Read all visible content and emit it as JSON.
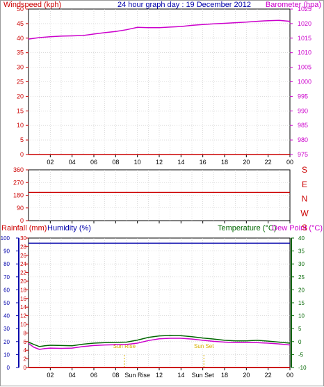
{
  "title": "24 hour graph day : 19 December 2012",
  "colors": {
    "frame": "#000000",
    "grid": "#c8c8c8",
    "red": "#cc0000",
    "magenta": "#cc00cc",
    "navy": "#0000aa",
    "green": "#006600",
    "gold": "#d8b000"
  },
  "chart_data": [
    {
      "type": "line",
      "panel": "wind-baro",
      "title": "24 hour graph day : 19 December 2012",
      "left_axis": {
        "label": "Windspeed (kph)",
        "ylim": [
          0,
          50
        ],
        "ticks": [
          "0",
          "5",
          "10",
          "15",
          "20",
          "25",
          "30",
          "35",
          "40",
          "45",
          "50"
        ]
      },
      "right_axis": {
        "label": "Barometer (hpa)",
        "ylim": [
          975,
          1025
        ],
        "ticks": [
          "975",
          "980",
          "985",
          "990",
          "995",
          "1000",
          "1005",
          "1010",
          "1015",
          "1020",
          "1025"
        ]
      },
      "x_tick_labels": [
        "02",
        "04",
        "06",
        "08",
        "10",
        "12",
        "14",
        "16",
        "18",
        "20",
        "22",
        "00"
      ],
      "series": [
        {
          "name": "Windspeed (kph)",
          "axis": "left",
          "x": [
            0,
            24
          ],
          "values": [
            0,
            0
          ]
        },
        {
          "name": "Barometer (hpa)",
          "axis": "right",
          "x": [
            0,
            1,
            2,
            3,
            4,
            5,
            6,
            7,
            8,
            9,
            10,
            11,
            12,
            13,
            14,
            15,
            16,
            17,
            18,
            19,
            20,
            21,
            22,
            23,
            24
          ],
          "values": [
            1014.7,
            1015.2,
            1015.5,
            1015.7,
            1015.8,
            1015.9,
            1016.4,
            1016.9,
            1017.3,
            1017.9,
            1018.7,
            1018.6,
            1018.6,
            1018.8,
            1019.0,
            1019.4,
            1019.7,
            1019.9,
            1020.1,
            1020.3,
            1020.5,
            1020.8,
            1021.0,
            1021.1,
            1020.8
          ]
        }
      ]
    },
    {
      "type": "line",
      "panel": "wind-direction",
      "left_axis": {
        "ylim": [
          0,
          360
        ],
        "ticks": [
          "0",
          "90",
          "180",
          "270",
          "360"
        ]
      },
      "right_axis_labels": [
        "S",
        "E",
        "N",
        "W",
        "S"
      ],
      "series": [
        {
          "name": "Wind direction",
          "x": [
            0,
            24
          ],
          "values": [
            200,
            200
          ]
        }
      ]
    },
    {
      "type": "line",
      "panel": "temperature",
      "left_axis_rain": {
        "label": "Rainfall (mm)",
        "ylim": [
          0,
          30
        ],
        "ticks": [
          "0",
          "2",
          "4",
          "6",
          "8",
          "10",
          "12",
          "14",
          "16",
          "18",
          "20",
          "22",
          "24",
          "26",
          "28",
          "30"
        ]
      },
      "left_axis_humidity": {
        "label": "Humidity (%)",
        "ylim": [
          0,
          100
        ],
        "ticks": [
          "0",
          "10",
          "20",
          "30",
          "40",
          "50",
          "60",
          "70",
          "80",
          "90",
          "100"
        ]
      },
      "right_axis": {
        "label": "Temperature (°C)",
        "ylim": [
          -10,
          40
        ],
        "ticks": [
          "-10",
          "-5",
          "0",
          "5",
          "10",
          "15",
          "20",
          "25",
          "30",
          "35",
          "40"
        ]
      },
      "extra_label": "Dew Point (°C)",
      "x_tick_labels": [
        "02",
        "04",
        "06",
        "08",
        "Sun Rise",
        "12",
        "14",
        "Sun Set",
        "18",
        "20",
        "22",
        "00"
      ],
      "annotations": [
        {
          "text": "Sun Rise",
          "x": 8.8
        },
        {
          "text": "Sun Set",
          "x": 16.1
        }
      ],
      "series": [
        {
          "name": "Rainfall (mm)",
          "axis": "rain",
          "x": [
            0,
            24
          ],
          "values": [
            0,
            0
          ]
        },
        {
          "name": "Humidity (%)",
          "axis": "humidity",
          "x": [
            0,
            24
          ],
          "values": [
            96,
            96
          ]
        },
        {
          "name": "Temperature (°C)",
          "axis": "temp",
          "x": [
            0,
            0.5,
            1,
            1.5,
            2,
            3,
            4,
            5,
            6,
            7,
            8,
            9,
            10,
            11,
            12,
            13,
            14,
            15,
            16,
            17,
            18,
            19,
            20,
            21,
            22,
            23,
            24
          ],
          "values": [
            -0.2,
            -1.1,
            -1.9,
            -1.6,
            -1.4,
            -1.5,
            -1.6,
            -1.0,
            -0.6,
            -0.4,
            -0.3,
            -0.2,
            0.6,
            1.6,
            2.2,
            2.4,
            2.3,
            1.9,
            1.4,
            1.0,
            0.5,
            0.3,
            0.3,
            0.5,
            0.2,
            -0.2,
            -0.6
          ]
        },
        {
          "name": "Dew Point (°C)",
          "axis": "temp",
          "x": [
            0,
            0.5,
            1,
            1.5,
            2,
            3,
            4,
            5,
            6,
            7,
            8,
            9,
            10,
            11,
            12,
            13,
            14,
            15,
            16,
            17,
            18,
            19,
            20,
            21,
            22,
            23,
            24
          ],
          "values": [
            -0.7,
            -2.2,
            -3.0,
            -2.7,
            -2.5,
            -2.6,
            -2.5,
            -1.9,
            -1.5,
            -1.3,
            -1.2,
            -1.1,
            -0.6,
            0.4,
            1.1,
            1.3,
            1.3,
            1.0,
            0.5,
            0.1,
            -0.2,
            -0.4,
            -0.4,
            -0.4,
            -0.6,
            -0.9,
            -1.3
          ]
        }
      ]
    }
  ]
}
